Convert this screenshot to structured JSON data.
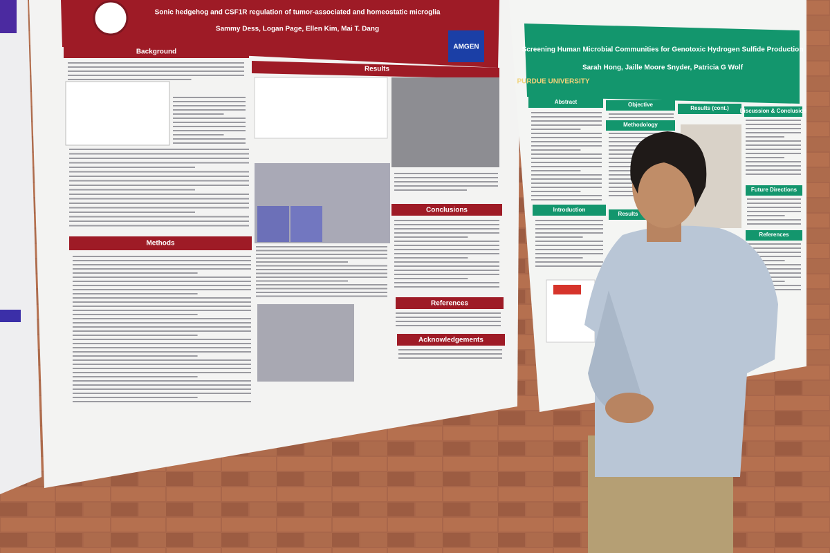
{
  "left_poster": {
    "title": "Sonic hedgehog and CSF1R regulation of tumor-associated and homeostatic microglia",
    "authors": "Sammy Dess, Logan Page, Ellen Kim, Mai T. Dang",
    "sponsor": "AMGEN",
    "sections": [
      "Background",
      "Results",
      "Methods",
      "Conclusions",
      "References",
      "Acknowledgements"
    ]
  },
  "right_poster": {
    "title": "Screening Human Microbial Communities for Genotoxic Hydrogen Sulfide Production",
    "authors": "Sarah Hong, Jaille Moore Snyder, Patricia G Wolf",
    "institution": "PURDUE UNIVERSITY",
    "sections": [
      "Abstract",
      "Objective",
      "Methodology",
      "Results (cont.)",
      "Discussion & Conclusion",
      "Introduction",
      "Results",
      "Future Directions",
      "References"
    ]
  }
}
